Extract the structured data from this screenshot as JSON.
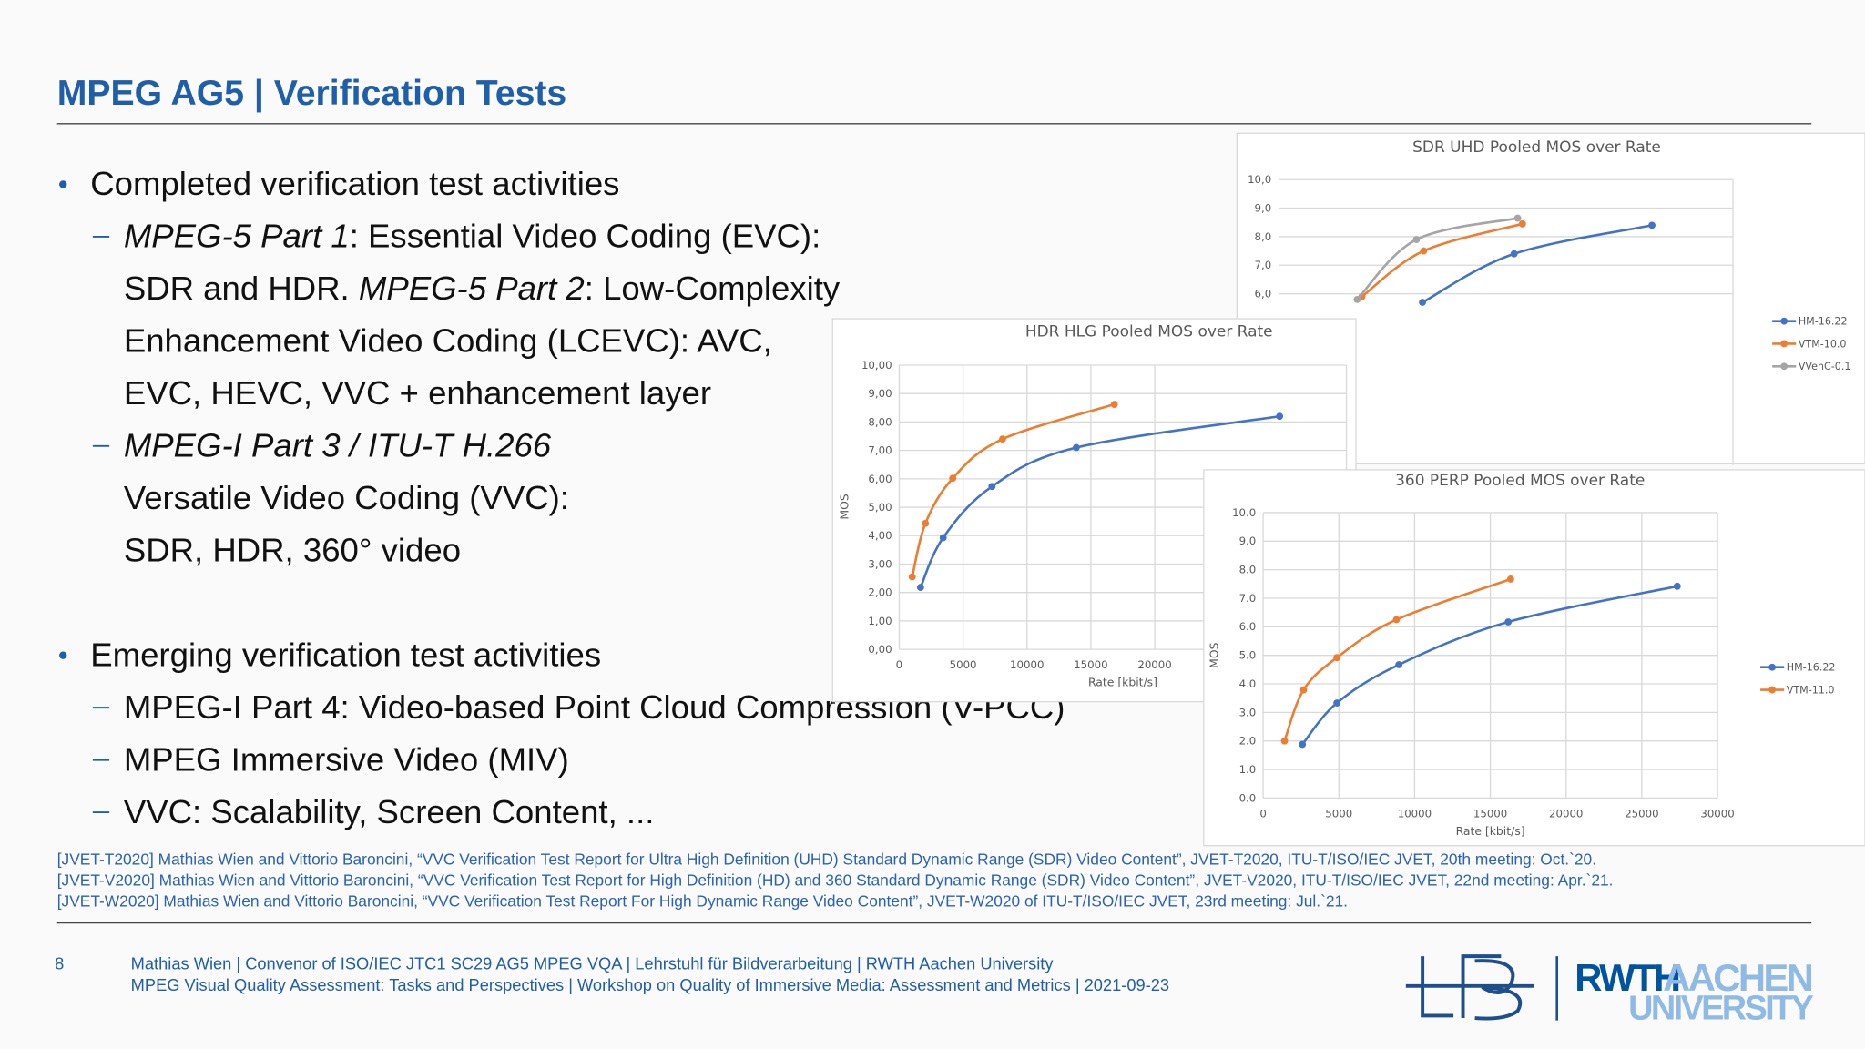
{
  "header": {
    "title": "MPEG AG5  |  Verification Tests"
  },
  "bullets": [
    {
      "text": "Completed verification test activities",
      "subs": [
        [
          [
            {
              "text": "MPEG-5 Part 1",
              "italic": true
            },
            {
              "text": ": Essential Video Coding (EVC):"
            }
          ],
          [
            {
              "text": "SDR and HDR. "
            },
            {
              "text": "MPEG-5 Part 2",
              "italic": true
            },
            {
              "text": ": Low-Complexity"
            }
          ],
          [
            {
              "text": "Enhancement Video Coding (LCEVC): AVC,"
            }
          ],
          [
            {
              "text": "EVC, HEVC, VVC + enhancement layer"
            }
          ]
        ],
        [
          [
            {
              "text": "MPEG-I Part 3 / ITU-T H.266",
              "italic": true
            }
          ],
          [
            {
              "text": "Versatile Video Coding (VVC):"
            }
          ],
          [
            {
              "text": "SDR, HDR, 360° video"
            }
          ]
        ]
      ]
    },
    {
      "text": "Emerging verification test activities",
      "subs": [
        [
          [
            {
              "text": "MPEG-I Part 4: Video-based Point Cloud Compression (V-PCC)"
            }
          ]
        ],
        [
          [
            {
              "text": "MPEG Immersive Video (MIV)"
            }
          ]
        ],
        [
          [
            {
              "text": "VVC: Scalability, Screen Content, ..."
            }
          ]
        ]
      ]
    }
  ],
  "references": [
    "[JVET-T2020] Mathias Wien and Vittorio Baroncini, “VVC Verification Test Report for Ultra High Definition (UHD) Standard Dynamic Range (SDR) Video Content”, JVET-T2020, ITU-T/ISO/IEC JVET, 20th meeting: Oct.`20.",
    "[JVET-V2020] Mathias Wien and Vittorio Baroncini, “VVC Verification Test Report for High Definition (HD) and 360 Standard Dynamic Range (SDR) Video Content”, JVET-V2020, ITU-T/ISO/IEC JVET, 22nd meeting: Apr.`21.",
    "[JVET-W2020] Mathias Wien and Vittorio Baroncini, “VVC Verification Test Report For High Dynamic Range Video Content”, JVET-W2020 of ITU-T/ISO/IEC JVET, 23rd meeting: Jul.`21."
  ],
  "footer": {
    "page": "8",
    "lines": [
      "Mathias Wien  |  Convenor of ISO/IEC JTC1 SC29 AG5 MPEG VQA  |  Lehrstuhl für Bildverarbeitung  |  RWTH Aachen University",
      "MPEG Visual Quality Assessment: Tasks and Perspectives  |   Workshop on Quality of Immersive Media: Assessment and Metrics  |  2021-09-23"
    ]
  },
  "logo": {
    "rwth": "RWTH",
    "aachen": "AACHEN",
    "university": "UNIVERSITY"
  },
  "chart_data": [
    {
      "type": "line",
      "title": "SDR UHD Pooled MOS over Rate",
      "grid": true,
      "xlim": [
        0,
        60000
      ],
      "ylim": [
        0,
        10
      ],
      "yticks": [
        {
          "value": 6,
          "label": "6,0"
        },
        {
          "value": 7,
          "label": "7,0"
        },
        {
          "value": 8,
          "label": "8,0"
        },
        {
          "value": 9,
          "label": "9,0"
        },
        {
          "value": 10,
          "label": "10,0"
        }
      ],
      "series": [
        {
          "name": "HM-16.22",
          "color": "#4472c4",
          "x": [
            19000,
            31100,
            49300
          ],
          "values": [
            5.7,
            7.4,
            8.4
          ]
        },
        {
          "name": "VTM-10.0",
          "color": "#ed7d31",
          "x": [
            11000,
            19150,
            32200
          ],
          "values": [
            5.9,
            7.5,
            8.45
          ]
        },
        {
          "name": "VVenC-0.1",
          "color": "#a5a5a5",
          "x": [
            10370,
            18200,
            31570
          ],
          "values": [
            5.8,
            7.9,
            8.65
          ]
        }
      ]
    },
    {
      "type": "line",
      "title": "HDR HLG Pooled MOS over Rate",
      "x_label": "Rate [kbit/s]",
      "y_label": "MOS",
      "grid": true,
      "xlim": [
        0,
        35000
      ],
      "ylim": [
        0,
        10
      ],
      "xticks": [
        0,
        5000,
        10000,
        15000,
        20000
      ],
      "yticks": [
        {
          "value": 0,
          "label": "0,00"
        },
        {
          "value": 1,
          "label": "1,00"
        },
        {
          "value": 2,
          "label": "2,00"
        },
        {
          "value": 3,
          "label": "3,00"
        },
        {
          "value": 4,
          "label": "4,00"
        },
        {
          "value": 5,
          "label": "5,00"
        },
        {
          "value": 6,
          "label": "6,00"
        },
        {
          "value": 7,
          "label": "7,00"
        },
        {
          "value": 8,
          "label": "8,00"
        },
        {
          "value": 9,
          "label": "9,00"
        },
        {
          "value": 10,
          "label": "10,00"
        }
      ],
      "series": [
        {
          "color": "#4472c4",
          "x": [
            1670,
            3440,
            7260,
            13860,
            29770
          ],
          "values": [
            2.18,
            3.93,
            5.73,
            7.1,
            8.2
          ]
        },
        {
          "color": "#ed7d31",
          "x": [
            1020,
            2050,
            4190,
            8090,
            16840
          ],
          "values": [
            2.55,
            4.43,
            6.02,
            7.4,
            8.62
          ]
        }
      ]
    },
    {
      "type": "line",
      "title": "360 PERP Pooled MOS over Rate",
      "x_label": "Rate [kbit/s]",
      "y_label": "MOS",
      "grid": true,
      "xlim": [
        0,
        30000
      ],
      "ylim": [
        0,
        10
      ],
      "xticks": [
        0,
        5000,
        10000,
        15000,
        20000,
        25000,
        30000
      ],
      "yticks": [
        {
          "value": 0,
          "label": "0.0"
        },
        {
          "value": 1,
          "label": "1.0"
        },
        {
          "value": 2,
          "label": "2.0"
        },
        {
          "value": 3,
          "label": "3.0"
        },
        {
          "value": 4,
          "label": "4.0"
        },
        {
          "value": 5,
          "label": "5.0"
        },
        {
          "value": 6,
          "label": "6.0"
        },
        {
          "value": 7,
          "label": "7.0"
        },
        {
          "value": 8,
          "label": "8.0"
        },
        {
          "value": 9,
          "label": "9.0"
        },
        {
          "value": 10,
          "label": "10.0"
        }
      ],
      "series": [
        {
          "name": "HM-16.22",
          "color": "#4472c4",
          "x": [
            2590,
            4870,
            8960,
            16180,
            27340
          ],
          "values": [
            1.88,
            3.33,
            4.67,
            6.17,
            7.42
          ]
        },
        {
          "name": "VTM-11.0",
          "color": "#ed7d31",
          "x": [
            1410,
            2670,
            4870,
            8800,
            16340
          ],
          "values": [
            2.0,
            3.79,
            4.92,
            6.25,
            7.67
          ]
        }
      ]
    }
  ]
}
